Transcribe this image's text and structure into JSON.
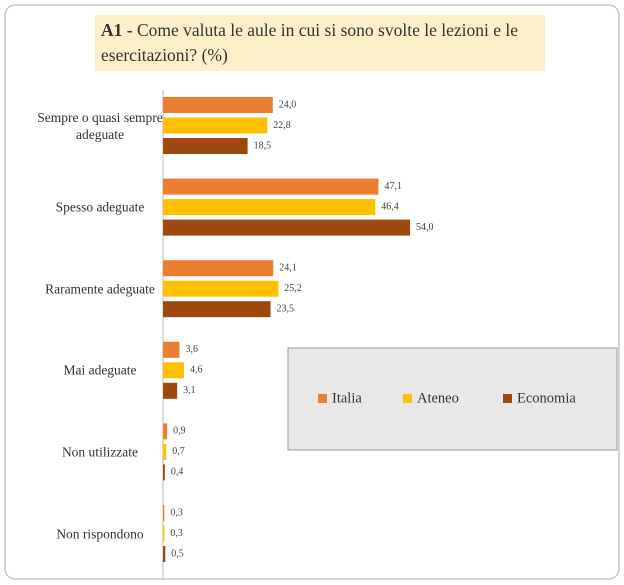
{
  "chart_data": {
    "type": "bar",
    "orientation": "horizontal",
    "title_code": "A1 -",
    "title": "Come valuta le aule in cui si sono svolte le lezioni e le esercitazioni? (%)",
    "categories": [
      "Sempre o quasi sempre adeguate",
      "Spesso adeguate",
      "Raramente adeguate",
      "Mai adeguate",
      "Non utilizzate",
      "Non rispondono"
    ],
    "series": [
      {
        "name": "Italia",
        "color": "#ed7d31",
        "values": [
          24.0,
          47.1,
          24.1,
          3.6,
          0.9,
          0.3
        ],
        "value_labels": [
          "24,0",
          "47,1",
          "24,1",
          "3,6",
          "0,9",
          "0,3"
        ]
      },
      {
        "name": "Ateneo",
        "color": "#ffc000",
        "values": [
          22.8,
          46.4,
          25.2,
          4.6,
          0.7,
          0.3
        ],
        "value_labels": [
          "22,8",
          "46,4",
          "25,2",
          "4,6",
          "0,7",
          "0,3"
        ]
      },
      {
        "name": "Economia",
        "color": "#9e480e",
        "values": [
          18.5,
          54.0,
          23.5,
          3.1,
          0.4,
          0.5
        ],
        "value_labels": [
          "18,5",
          "54,0",
          "23,5",
          "3,1",
          "0,4",
          "0,5"
        ]
      }
    ],
    "legend": "right"
  }
}
